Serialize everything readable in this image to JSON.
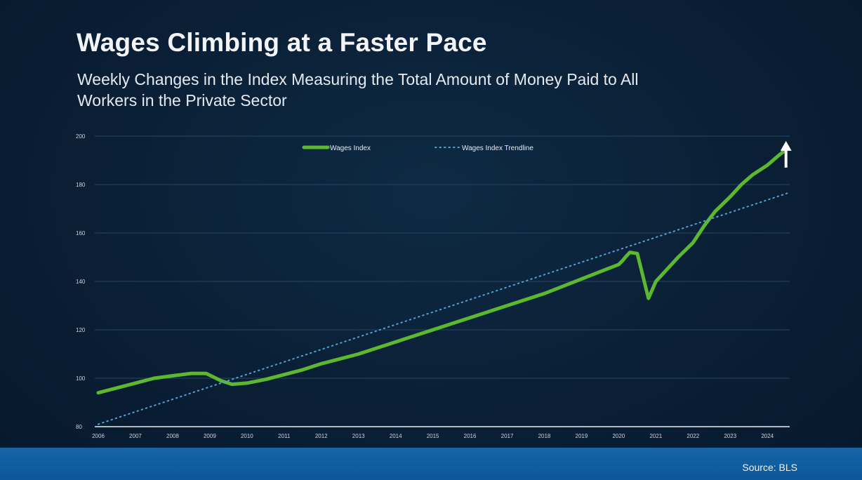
{
  "header": {
    "title": "Wages Climbing at a Faster Pace",
    "subtitle": "Weekly Changes in the Index Measuring the Total Amount of Money Paid to All Workers in the Private Sector"
  },
  "footer": {
    "source": "Source: BLS",
    "color": "#1565a8"
  },
  "chart_data": {
    "type": "line",
    "title": "",
    "xlabel": "",
    "ylabel": "",
    "ylim": [
      80,
      200
    ],
    "yticks": [
      80,
      100,
      120,
      140,
      160,
      180,
      200
    ],
    "xlim": [
      2006,
      2024.6
    ],
    "xticks": [
      "2006",
      "2007",
      "2008",
      "2009",
      "2010",
      "2011",
      "2012",
      "2013",
      "2014",
      "2015",
      "2016",
      "2017",
      "2018",
      "2019",
      "2020",
      "2021",
      "2022",
      "2023",
      "2024"
    ],
    "grid": true,
    "legend_position": "top",
    "series": [
      {
        "name": "Wages Index",
        "color": "#5cb82e",
        "style": "solid",
        "x": [
          2006.0,
          2006.5,
          2007.0,
          2007.5,
          2008.0,
          2008.5,
          2008.9,
          2009.3,
          2009.6,
          2010.0,
          2010.5,
          2011.0,
          2011.5,
          2012.0,
          2012.5,
          2013.0,
          2013.5,
          2014.0,
          2014.5,
          2015.0,
          2015.5,
          2016.0,
          2016.5,
          2017.0,
          2017.5,
          2018.0,
          2018.5,
          2019.0,
          2019.5,
          2020.0,
          2020.1,
          2020.18,
          2020.3,
          2020.5,
          2020.8,
          2021.0,
          2021.3,
          2021.6,
          2022.0,
          2022.3,
          2022.6,
          2023.0,
          2023.3,
          2023.6,
          2024.0,
          2024.3,
          2024.55
        ],
        "values": [
          94,
          96,
          98,
          100,
          101,
          102,
          102,
          99,
          97.5,
          98,
          99.5,
          101.5,
          103.5,
          106,
          108,
          110,
          112.5,
          115,
          117.5,
          120,
          122.5,
          125,
          127.5,
          130,
          132.5,
          135,
          138,
          141,
          144,
          147,
          148.5,
          150,
          152,
          151.5,
          133,
          140,
          145,
          150,
          156,
          163,
          169,
          175,
          180,
          184,
          188,
          192,
          195
        ]
      },
      {
        "name": "Wages Index Trendline",
        "color": "#4fa3d6",
        "style": "dotted",
        "x": [
          2006.0,
          2024.55
        ],
        "values": [
          81,
          176.5
        ]
      }
    ],
    "annotations": [
      {
        "type": "arrow-up",
        "x": 2024.5,
        "y": 187,
        "color": "#ffffff"
      }
    ]
  }
}
